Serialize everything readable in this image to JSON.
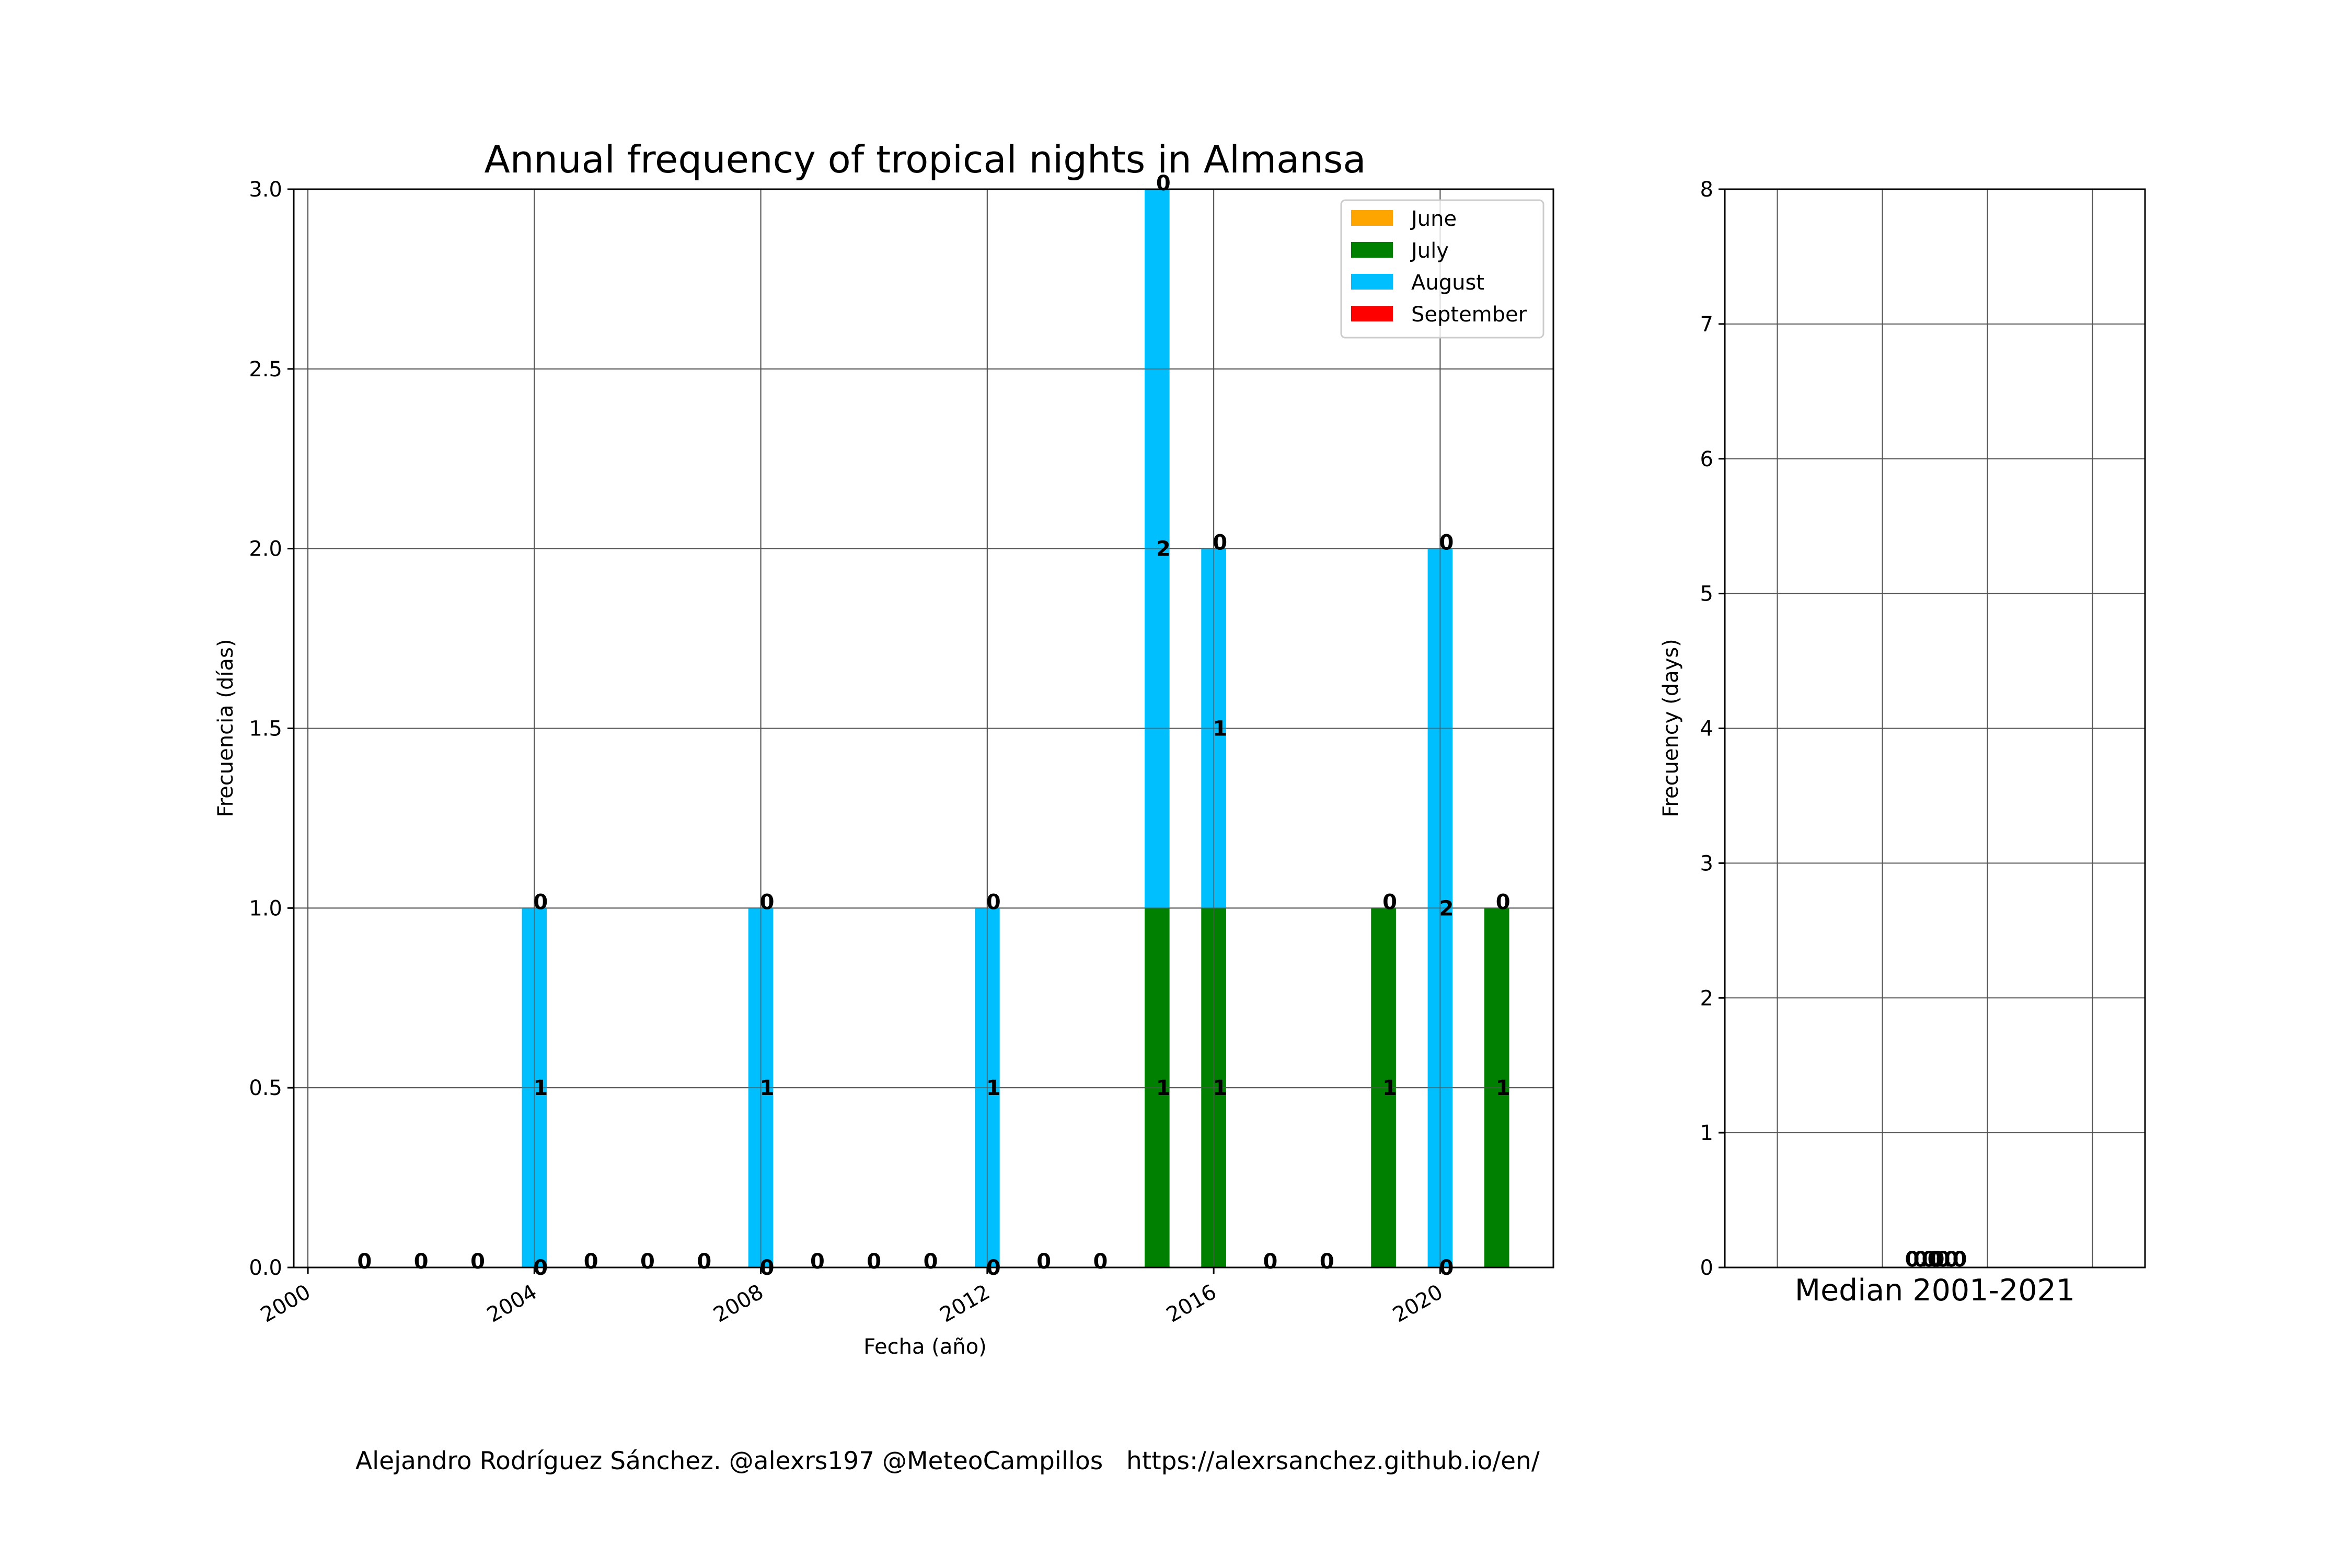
{
  "footer": "Alejandro Rodríguez Sánchez. @alexrs197 @MeteoCampillos   https://alexrsanchez.github.io/en/",
  "chart_data": [
    {
      "type": "bar",
      "stacked": true,
      "title": "Annual frequency of tropical nights in Almansa",
      "xlabel": "Fecha (año)",
      "ylabel": "Frecuencia (días)",
      "xlim": [
        1999.75,
        2022.0
      ],
      "ylim": [
        0,
        3.0
      ],
      "xticks": [
        "2000",
        "2004",
        "2008",
        "2012",
        "2016",
        "2020"
      ],
      "yticks": [
        "0.0",
        "0.5",
        "1.0",
        "1.5",
        "2.0",
        "2.5",
        "3.0"
      ],
      "grid": true,
      "legend_position": "top-right",
      "x": [
        2001,
        2002,
        2003,
        2004,
        2005,
        2006,
        2007,
        2008,
        2009,
        2010,
        2011,
        2012,
        2013,
        2014,
        2015,
        2016,
        2017,
        2018,
        2019,
        2020,
        2021
      ],
      "series": [
        {
          "name": "June",
          "color": "#ffa500",
          "values": [
            0,
            0,
            0,
            0,
            0,
            0,
            0,
            0,
            0,
            0,
            0,
            0,
            0,
            0,
            0,
            0,
            0,
            0,
            0,
            0,
            0
          ]
        },
        {
          "name": "July",
          "color": "#008000",
          "values": [
            0,
            0,
            0,
            0,
            0,
            0,
            0,
            0,
            0,
            0,
            0,
            0,
            0,
            0,
            1,
            1,
            0,
            0,
            1,
            0,
            1
          ]
        },
        {
          "name": "August",
          "color": "#00bfff",
          "values": [
            0,
            0,
            0,
            1,
            0,
            0,
            0,
            1,
            0,
            0,
            0,
            1,
            0,
            0,
            2,
            1,
            0,
            0,
            0,
            2,
            0
          ]
        },
        {
          "name": "September",
          "color": "#ff0000",
          "values": [
            0,
            0,
            0,
            0,
            0,
            0,
            0,
            0,
            0,
            0,
            0,
            0,
            0,
            0,
            0,
            0,
            0,
            0,
            0,
            0,
            0
          ]
        }
      ]
    },
    {
      "type": "bar",
      "xlabel": "Median 2001-2021",
      "ylabel": "Frecuency (days)",
      "ylim": [
        0,
        8
      ],
      "yticks": [
        "0",
        "1",
        "2",
        "3",
        "4",
        "5",
        "6",
        "7",
        "8"
      ],
      "grid": true,
      "values": [
        0,
        0,
        0,
        0
      ],
      "value_labels": [
        "0.0",
        "0.0",
        "0.0",
        "0.0"
      ]
    }
  ]
}
